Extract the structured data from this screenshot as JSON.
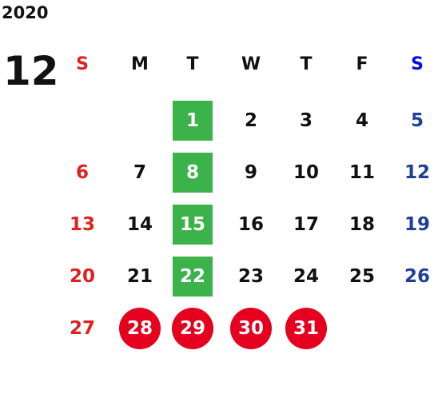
{
  "year": "2020",
  "month": "12",
  "weekdays": [
    "S",
    "M",
    "T",
    "W",
    "T",
    "F",
    "S"
  ],
  "weeks": [
    [
      null,
      null,
      "1",
      "2",
      "3",
      "4",
      "5"
    ],
    [
      "6",
      "7",
      "8",
      "9",
      "10",
      "11",
      "12"
    ],
    [
      "13",
      "14",
      "15",
      "16",
      "17",
      "18",
      "19"
    ],
    [
      "20",
      "21",
      "22",
      "23",
      "24",
      "25",
      "26"
    ],
    [
      "27",
      "28",
      "29",
      "30",
      "31",
      null,
      null
    ]
  ]
}
